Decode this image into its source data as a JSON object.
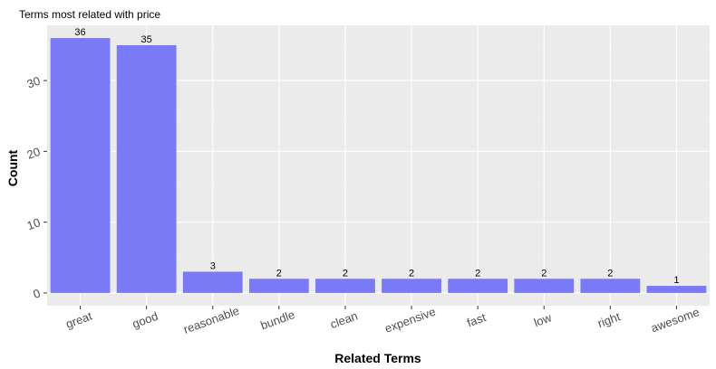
{
  "chart_data": {
    "type": "bar",
    "title": "Terms most related with price",
    "xlabel": "Related Terms",
    "ylabel": "Count",
    "categories": [
      "great",
      "good",
      "reasonable",
      "bundle",
      "clean",
      "expensive",
      "fast",
      "low",
      "right",
      "awesome"
    ],
    "values": [
      36,
      35,
      3,
      2,
      2,
      2,
      2,
      2,
      2,
      1
    ],
    "ylim": [
      -1.8,
      37.8
    ],
    "yticks": [
      0,
      10,
      20,
      30
    ],
    "ytick_labels": [
      "0",
      "10",
      "20",
      "30"
    ],
    "grid": true,
    "legend": "none",
    "data_labels": true,
    "colors": {
      "bar": "#7a7af7",
      "panel": "#ebebeb",
      "grid_major": "#ffffff",
      "grid_minor": "#f2f2f2"
    }
  }
}
